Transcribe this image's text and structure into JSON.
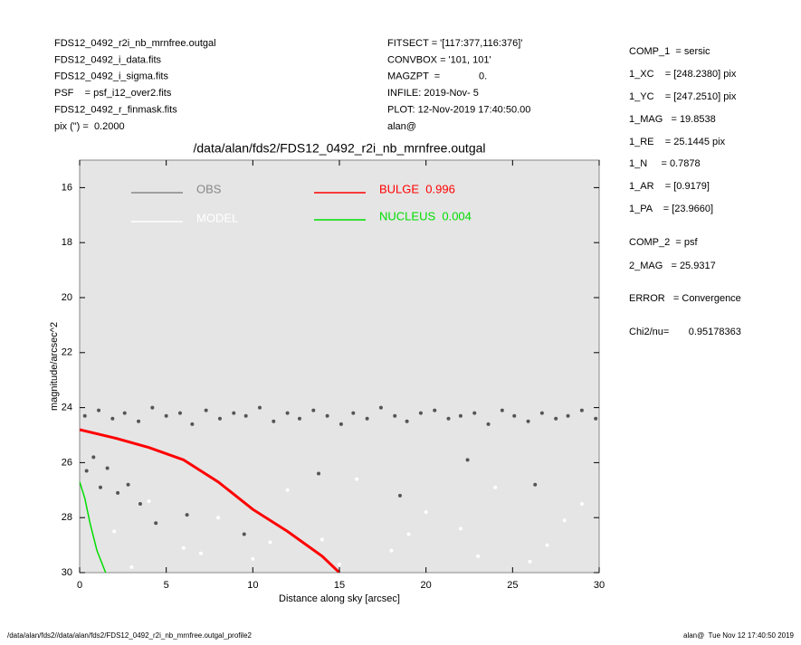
{
  "header": {
    "left": [
      "FDS12_0492_r2i_nb_mrnfree.outgal",
      "FDS12_0492_i_data.fits",
      "FDS12_0492_i_sigma.fits",
      "PSF    = psf_i12_over2.fits",
      "FDS12_0492_r_finmask.fits",
      "pix (\") =  0.2000"
    ],
    "middle": [
      "FITSECT = '[117:377,116:376]'",
      "CONVBOX = '101, 101'",
      "MAGZPT  =              0.",
      "INFILE: 2019-Nov- 5",
      "PLOT: 12-Nov-2019 17:40:50.00",
      "alan@"
    ],
    "right": [
      "COMP_1  = sersic",
      "1_XC    = [248.2380] pix",
      "1_YC    = [247.2510] pix",
      "1_MAG   = 19.8538",
      "1_RE    = 25.1445 pix",
      "1_N     = 0.7878",
      "1_AR    = [0.9179]",
      "1_PA    = [23.9660]",
      "COMP_2  = psf",
      "2_MAG   = 25.9317",
      "ERROR   = Convergence",
      "Chi2/nu=       0.95178363"
    ]
  },
  "footer": {
    "left": "/data/alan/fds2//data/alan/fds2/FDS12_0492_r2i_nb_mrnfree.outgal_profile2",
    "right": "alan@  Tue Nov 12 17:40:50 2019"
  },
  "chart_data": {
    "type": "scatter",
    "title": "/data/alan/fds2/FDS12_0492_r2i_nb_mrnfree.outgal",
    "xlabel": "Distance along sky [arcsec]",
    "ylabel": "magnitude/arcsec^2",
    "xlim": [
      0,
      30
    ],
    "ylim": [
      30,
      15
    ],
    "xticks": [
      0,
      5,
      10,
      15,
      20,
      25,
      30
    ],
    "yticks": [
      16,
      18,
      20,
      22,
      24,
      26,
      28,
      30
    ],
    "background": "#e5e5e5",
    "series": [
      {
        "name": "OBS",
        "color": "#555555",
        "legend_color": "#888888",
        "mode": "markers",
        "x": [
          0.3,
          1.1,
          1.9,
          2.6,
          3.4,
          4.2,
          5.0,
          5.8,
          6.5,
          7.3,
          8.1,
          8.9,
          9.6,
          10.4,
          11.2,
          12.0,
          12.7,
          13.5,
          14.3,
          15.1,
          15.8,
          16.6,
          17.4,
          18.2,
          18.9,
          19.7,
          20.5,
          21.3,
          22.0,
          22.8,
          23.6,
          24.4,
          25.1,
          25.9,
          26.7,
          27.5,
          28.2,
          29.0,
          29.8,
          0.4,
          0.8,
          1.2,
          1.6,
          2.2,
          2.8,
          3.5,
          4.4,
          6.2,
          9.5,
          13.8,
          18.5,
          22.4,
          26.3
        ],
        "values": [
          24.3,
          24.1,
          24.4,
          24.2,
          24.5,
          24.0,
          24.3,
          24.2,
          24.6,
          24.1,
          24.4,
          24.2,
          24.3,
          24.0,
          24.5,
          24.2,
          24.4,
          24.1,
          24.3,
          24.6,
          24.2,
          24.4,
          24.0,
          24.3,
          24.5,
          24.2,
          24.1,
          24.4,
          24.3,
          24.2,
          24.6,
          24.1,
          24.3,
          24.5,
          24.2,
          24.4,
          24.3,
          24.1,
          24.4,
          26.3,
          25.8,
          26.9,
          26.2,
          27.1,
          26.8,
          27.5,
          28.2,
          27.9,
          28.6,
          26.4,
          27.2,
          25.9,
          26.8
        ]
      },
      {
        "name": "MODEL",
        "color": "#ffffff",
        "mode": "markers",
        "x": [
          2,
          4,
          6,
          8,
          10,
          12,
          14,
          16,
          18,
          20,
          22,
          24,
          26,
          28,
          3,
          7,
          11,
          15,
          19,
          23,
          27,
          29
        ],
        "values": [
          28.5,
          27.4,
          29.1,
          28.0,
          29.5,
          27.0,
          28.8,
          26.6,
          29.2,
          27.8,
          28.4,
          26.9,
          29.6,
          28.1,
          29.8,
          29.3,
          28.9,
          29.7,
          28.6,
          29.4,
          29.0,
          27.5
        ]
      },
      {
        "name": "BULGE  0.996",
        "color": "#ff0000",
        "mode": "line",
        "x": [
          0,
          2,
          4,
          6,
          8,
          10,
          12,
          14,
          15
        ],
        "values": [
          24.8,
          25.1,
          25.45,
          25.9,
          26.7,
          27.7,
          28.5,
          29.4,
          30
        ]
      },
      {
        "name": "NUCLEUS  0.004",
        "color": "#00dd00",
        "mode": "line",
        "x": [
          0,
          0.3,
          0.6,
          1.0,
          1.5
        ],
        "values": [
          26.7,
          27.3,
          28.2,
          29.2,
          30
        ]
      }
    ]
  }
}
